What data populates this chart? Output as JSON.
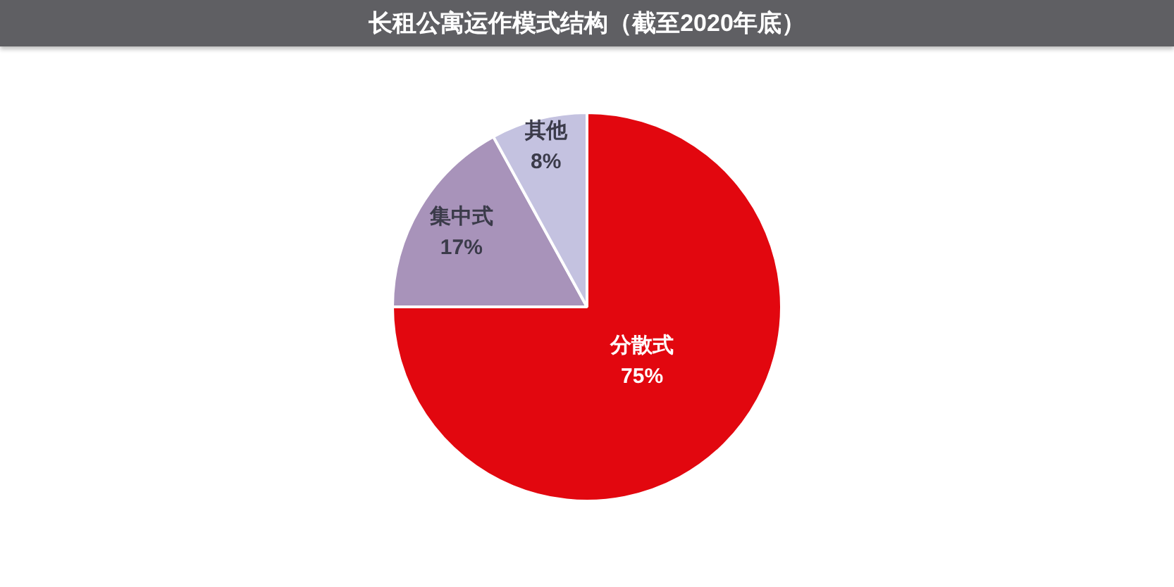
{
  "chart_data": {
    "type": "pie",
    "title": "长租公寓运作模式结构（截至2020年底）",
    "categories": [
      "分散式",
      "集中式",
      "其他"
    ],
    "values": [
      75,
      17,
      8
    ],
    "colors": [
      "#e2070f",
      "#a893ba",
      "#c4c2e0"
    ],
    "value_labels": [
      "75%",
      "17%",
      "8%"
    ]
  }
}
